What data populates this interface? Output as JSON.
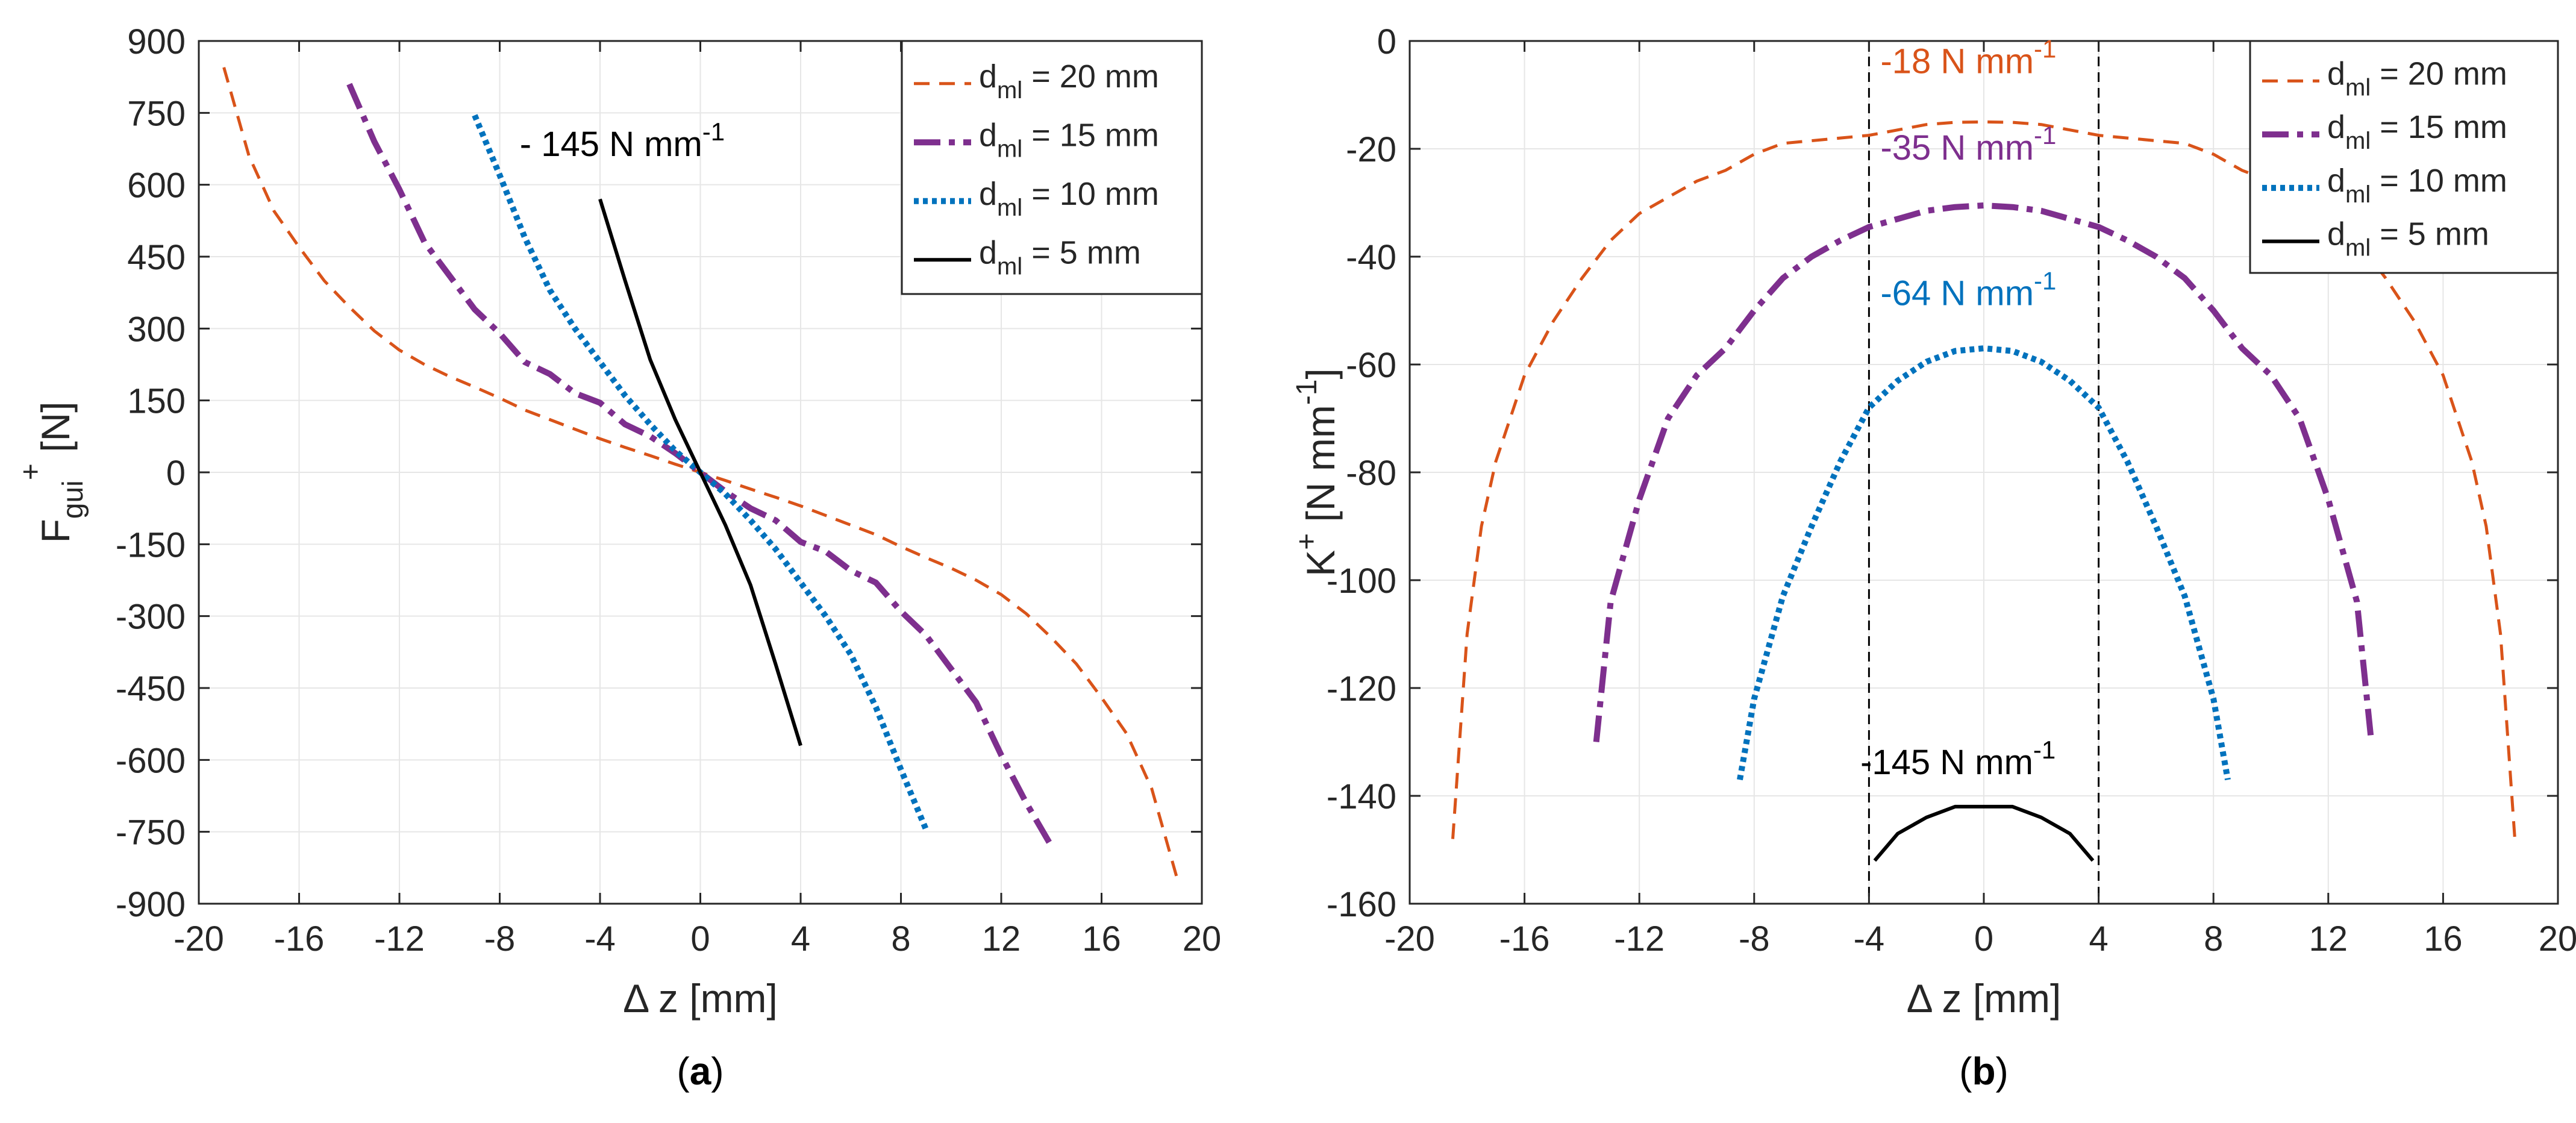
{
  "colors": {
    "d20": "#D95319",
    "d15": "#7E2F8E",
    "d10": "#0072BD",
    "d5": "#000000",
    "grid": "#e6e6e6",
    "axis": "#262626"
  },
  "chart_data": [
    {
      "id": "a",
      "type": "line",
      "caption": "(a)",
      "xlabel": "Δ z [mm]",
      "ylabel": {
        "base": "F",
        "sub": "gui",
        "sup": "+",
        "unit": "[N]"
      },
      "xlim": [
        -20,
        20
      ],
      "ylim": [
        -900,
        900
      ],
      "xticks": [
        -20,
        -16,
        -12,
        -8,
        -4,
        0,
        4,
        8,
        12,
        16,
        20
      ],
      "yticks": [
        900,
        750,
        600,
        450,
        300,
        150,
        0,
        -150,
        -300,
        -450,
        -600,
        -750,
        -900
      ],
      "grid": true,
      "legend_position": "top-right",
      "series": [
        {
          "key": "d20",
          "name": "d_ml = 20 mm",
          "label_pre": "d",
          "label_sub": "ml",
          "label_post": " = 20 mm",
          "style": "dashed",
          "x": [
            -19,
            -18,
            -17,
            -16,
            -15,
            -14,
            -13,
            -12,
            -11,
            -10,
            -9,
            -8,
            -7,
            -6,
            -5,
            -4,
            -3,
            -2,
            -1,
            0,
            1,
            2,
            3,
            4,
            5,
            6,
            7,
            8,
            9,
            10,
            11,
            12,
            13,
            14,
            15,
            16,
            17,
            18,
            19
          ],
          "y": [
            845,
            660,
            545,
            470,
            400,
            345,
            295,
            255,
            225,
            200,
            178,
            155,
            130,
            110,
            90,
            70,
            52,
            35,
            17,
            0,
            -17,
            -35,
            -52,
            -70,
            -90,
            -110,
            -130,
            -155,
            -178,
            -200,
            -225,
            -255,
            -295,
            -345,
            -400,
            -470,
            -545,
            -660,
            -845
          ]
        },
        {
          "key": "d15",
          "name": "d_ml = 15 mm",
          "label_pre": "d",
          "label_sub": "ml",
          "label_post": " = 15 mm",
          "style": "dashdot",
          "x": [
            -14,
            -13,
            -12,
            -11,
            -10,
            -9,
            -8,
            -7,
            -6,
            -5,
            -4,
            -3,
            -2,
            -1,
            0,
            1,
            2,
            3,
            4,
            5,
            6,
            7,
            8,
            9,
            10,
            11,
            12,
            13,
            14
          ],
          "y": [
            810,
            690,
            590,
            480,
            410,
            340,
            290,
            230,
            205,
            165,
            145,
            100,
            75,
            40,
            0,
            -40,
            -75,
            -100,
            -145,
            -165,
            -205,
            -230,
            -290,
            -340,
            -410,
            -480,
            -590,
            -690,
            -780
          ]
        },
        {
          "key": "d10",
          "name": "d_ml = 10 mm",
          "label_pre": "d",
          "label_sub": "ml",
          "label_post": " = 10 mm",
          "style": "dotted",
          "x": [
            -9,
            -8,
            -7,
            -6,
            -5,
            -4,
            -3,
            -2,
            -1,
            0,
            1,
            2,
            3,
            4,
            5,
            6,
            7,
            8,
            9
          ],
          "y": [
            745,
            620,
            490,
            380,
            300,
            230,
            160,
            100,
            45,
            0,
            -45,
            -100,
            -160,
            -230,
            -300,
            -380,
            -490,
            -620,
            -745
          ]
        },
        {
          "key": "d5",
          "name": "d_ml = 5 mm",
          "label_pre": "d",
          "label_sub": "ml",
          "label_post": " = 5 mm",
          "style": "solid",
          "x": [
            -4,
            -3,
            -2,
            -1,
            0,
            1,
            2,
            3,
            4
          ],
          "y": [
            570,
            400,
            235,
            110,
            0,
            -110,
            -235,
            -400,
            -570
          ]
        }
      ],
      "annotations": [
        {
          "text": "- 145 N mm",
          "sup": "-1",
          "x": -7.2,
          "y": 660,
          "color_key": "d5"
        }
      ]
    },
    {
      "id": "b",
      "type": "line",
      "caption": "(b)",
      "xlabel": "Δ z [mm]",
      "ylabel": {
        "base": "K",
        "sup": "+",
        "unit": "[N mm",
        "unit_sup": "-1",
        "unit_end": "]"
      },
      "xlim": [
        -20,
        20
      ],
      "ylim": [
        -160,
        0
      ],
      "xticks": [
        -20,
        -16,
        -12,
        -8,
        -4,
        0,
        4,
        8,
        12,
        16,
        20
      ],
      "yticks": [
        0,
        -20,
        -40,
        -60,
        -80,
        -100,
        -120,
        -140,
        -160
      ],
      "grid": true,
      "legend_position": "top-right",
      "vlines": [
        -4,
        4
      ],
      "series": [
        {
          "key": "d20",
          "name": "d_ml = 20 mm",
          "label_pre": "d",
          "label_sub": "ml",
          "label_post": " = 20 mm",
          "style": "dashed",
          "x": [
            -18.5,
            -18,
            -17.5,
            -17,
            -16.5,
            -16,
            -15,
            -14,
            -13,
            -12,
            -11,
            -10,
            -9,
            -8,
            -7,
            -6,
            -5,
            -4,
            -3,
            -2,
            -1,
            0,
            1,
            2,
            3,
            4,
            5,
            6,
            7,
            8,
            9,
            10,
            11,
            12,
            13,
            14,
            15,
            16,
            16.5,
            17,
            17.5,
            18,
            18.5
          ],
          "y": [
            -148,
            -110,
            -90,
            -78,
            -70,
            -62,
            -52,
            -44,
            -37,
            -32,
            -29,
            -26,
            -24,
            -21,
            -19,
            -18.5,
            -18,
            -17.5,
            -16.5,
            -15.5,
            -15.1,
            -15,
            -15.1,
            -15.5,
            -16.5,
            -17.5,
            -18,
            -18.5,
            -19,
            -21,
            -24,
            -26,
            -29,
            -32,
            -37,
            -44,
            -52,
            -62,
            -70,
            -78,
            -90,
            -110,
            -148
          ]
        },
        {
          "key": "d15",
          "name": "d_ml = 15 mm",
          "label_pre": "d",
          "label_sub": "ml",
          "label_post": " = 15 mm",
          "style": "dashdot",
          "x": [
            -13.5,
            -13,
            -12,
            -11,
            -10,
            -9,
            -8,
            -7,
            -6,
            -5,
            -4,
            -3,
            -2,
            -1,
            0,
            1,
            2,
            3,
            4,
            5,
            6,
            7,
            8,
            9,
            10,
            11,
            12,
            13,
            13.5
          ],
          "y": [
            -130,
            -104,
            -85,
            -70,
            -62,
            -57,
            -50,
            -44,
            -40,
            -37,
            -34.5,
            -33,
            -31.5,
            -30.8,
            -30.5,
            -30.8,
            -31.5,
            -33,
            -34.5,
            -37,
            -40,
            -44,
            -50,
            -57,
            -62,
            -70,
            -85,
            -104,
            -130
          ]
        },
        {
          "key": "d10",
          "name": "d_ml = 10 mm",
          "label_pre": "d",
          "label_sub": "ml",
          "label_post": " = 10 mm",
          "style": "dotted",
          "x": [
            -8.5,
            -8,
            -7,
            -6,
            -5,
            -4,
            -3,
            -2,
            -1,
            0,
            1,
            2,
            3,
            4,
            5,
            6,
            7,
            8,
            8.5
          ],
          "y": [
            -137,
            -122,
            -103,
            -90,
            -78,
            -68,
            -63,
            -59.5,
            -57.5,
            -57,
            -57.5,
            -59.5,
            -63,
            -68,
            -78,
            -90,
            -103,
            -122,
            -137
          ]
        },
        {
          "key": "d5",
          "name": "d_ml = 5 mm",
          "label_pre": "d",
          "label_sub": "ml",
          "label_post": " = 5 mm",
          "style": "solid",
          "x": [
            -3.8,
            -3,
            -2,
            -1,
            0,
            1,
            2,
            3,
            3.8
          ],
          "y": [
            -152,
            -147,
            -144,
            -142,
            -142,
            -142,
            -144,
            -147,
            -152
          ]
        }
      ],
      "annotations": [
        {
          "text": "-18 N mm",
          "sup": "-1",
          "x": -3.6,
          "y": -6,
          "color_key": "d20"
        },
        {
          "text": "-35 N mm",
          "sup": "-1",
          "x": -3.6,
          "y": -22,
          "color_key": "d15"
        },
        {
          "text": "-64 N mm",
          "sup": "-1",
          "x": -3.6,
          "y": -49,
          "color_key": "d10"
        },
        {
          "text": "-145 N mm",
          "sup": "-1",
          "x": -4.3,
          "y": -136,
          "color_key": "d5"
        }
      ]
    }
  ]
}
